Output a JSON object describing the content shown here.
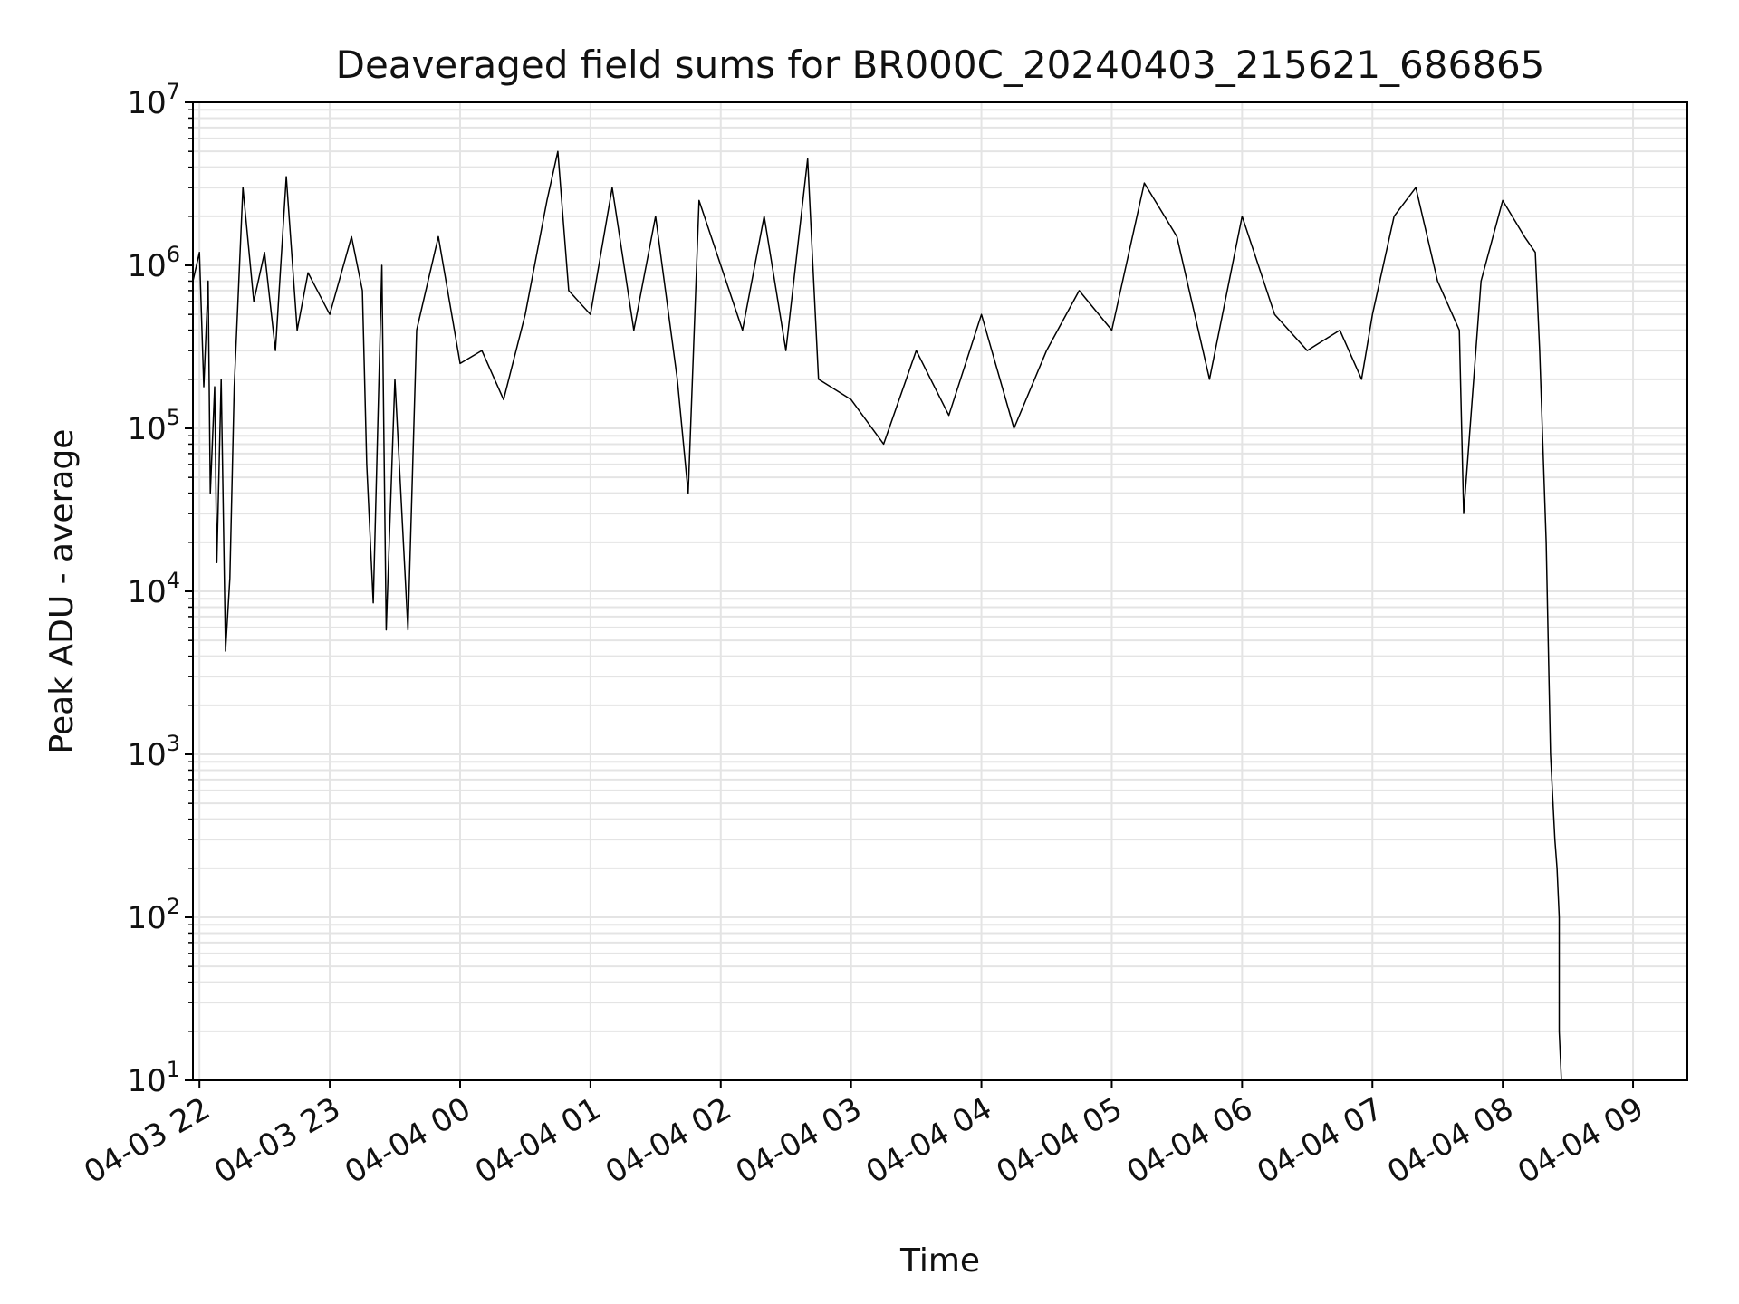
{
  "chart_data": {
    "type": "line",
    "title": "Deaveraged field sums for BR000C_20240403_215621_686865",
    "xlabel": "Time",
    "ylabel": "Peak ADU - average",
    "yscale": "log",
    "ylim": [
      10,
      10000000
    ],
    "xlim": [
      "2024-04-03 21:57",
      "2024-04-04 09:25"
    ],
    "grid": true,
    "legend": "none",
    "line_color": "#000000",
    "x_tick_labels": [
      "04-03 22",
      "04-03 23",
      "04-04 00",
      "04-04 01",
      "04-04 02",
      "04-04 03",
      "04-04 04",
      "04-04 05",
      "04-04 06",
      "04-04 07",
      "04-04 08",
      "04-04 09"
    ],
    "x_ticks": [
      "2024-04-03 22:00",
      "2024-04-03 23:00",
      "2024-04-04 00:00",
      "2024-04-04 01:00",
      "2024-04-04 02:00",
      "2024-04-04 03:00",
      "2024-04-04 04:00",
      "2024-04-04 05:00",
      "2024-04-04 06:00",
      "2024-04-04 07:00",
      "2024-04-04 08:00",
      "2024-04-04 09:00"
    ],
    "y_tick_values": [
      10,
      100,
      1000,
      10000,
      100000,
      1000000,
      10000000
    ],
    "y_tick_labels": [
      {
        "base": "10",
        "exp": "1"
      },
      {
        "base": "10",
        "exp": "2"
      },
      {
        "base": "10",
        "exp": "3"
      },
      {
        "base": "10",
        "exp": "4"
      },
      {
        "base": "10",
        "exp": "5"
      },
      {
        "base": "10",
        "exp": "6"
      },
      {
        "base": "10",
        "exp": "7"
      }
    ],
    "series": [
      {
        "x": [
          "2024-04-03 21:57",
          "2024-04-03 22:00",
          "2024-04-03 22:02",
          "2024-04-03 22:04",
          "2024-04-03 22:05",
          "2024-04-03 22:07",
          "2024-04-03 22:08",
          "2024-04-03 22:10",
          "2024-04-03 22:12",
          "2024-04-03 22:14",
          "2024-04-03 22:16",
          "2024-04-03 22:20",
          "2024-04-03 22:25",
          "2024-04-03 22:30",
          "2024-04-03 22:35",
          "2024-04-03 22:40",
          "2024-04-03 22:45",
          "2024-04-03 22:50",
          "2024-04-03 23:00",
          "2024-04-03 23:10",
          "2024-04-03 23:15",
          "2024-04-03 23:17",
          "2024-04-03 23:20",
          "2024-04-03 23:24",
          "2024-04-03 23:26",
          "2024-04-03 23:30",
          "2024-04-03 23:36",
          "2024-04-03 23:40",
          "2024-04-03 23:50",
          "2024-04-04 00:00",
          "2024-04-04 00:10",
          "2024-04-04 00:20",
          "2024-04-04 00:30",
          "2024-04-04 00:40",
          "2024-04-04 00:45",
          "2024-04-04 00:50",
          "2024-04-04 01:00",
          "2024-04-04 01:10",
          "2024-04-04 01:20",
          "2024-04-04 01:30",
          "2024-04-04 01:40",
          "2024-04-04 01:45",
          "2024-04-04 01:50",
          "2024-04-04 02:00",
          "2024-04-04 02:10",
          "2024-04-04 02:20",
          "2024-04-04 02:30",
          "2024-04-04 02:40",
          "2024-04-04 02:45",
          "2024-04-04 03:00",
          "2024-04-04 03:15",
          "2024-04-04 03:30",
          "2024-04-04 03:45",
          "2024-04-04 04:00",
          "2024-04-04 04:15",
          "2024-04-04 04:30",
          "2024-04-04 04:45",
          "2024-04-04 05:00",
          "2024-04-04 05:15",
          "2024-04-04 05:30",
          "2024-04-04 05:45",
          "2024-04-04 06:00",
          "2024-04-04 06:15",
          "2024-04-04 06:30",
          "2024-04-04 06:45",
          "2024-04-04 06:55",
          "2024-04-04 07:00",
          "2024-04-04 07:10",
          "2024-04-04 07:20",
          "2024-04-04 07:30",
          "2024-04-04 07:40",
          "2024-04-04 07:42",
          "2024-04-04 07:50",
          "2024-04-04 08:00",
          "2024-04-04 08:10",
          "2024-04-04 08:15",
          "2024-04-04 08:17",
          "2024-04-04 08:20",
          "2024-04-04 08:22",
          "2024-04-04 08:24",
          "2024-04-04 08:25",
          "2024-04-04 08:26",
          "2024-04-04 08:26",
          "2024-04-04 08:27"
        ],
        "y": [
          800000,
          1200000,
          180000,
          800000,
          40000,
          180000,
          15000,
          200000,
          4300,
          12000,
          180000,
          3000000,
          600000,
          1200000,
          300000,
          3500000,
          400000,
          900000,
          500000,
          1500000,
          700000,
          60000,
          8500,
          1000000,
          5800,
          200000,
          5800,
          400000,
          1500000,
          250000,
          300000,
          150000,
          500000,
          2500000,
          5000000,
          700000,
          500000,
          3000000,
          400000,
          2000000,
          200000,
          40000,
          2500000,
          1000000,
          400000,
          2000000,
          300000,
          4500000,
          200000,
          150000,
          80000,
          300000,
          120000,
          500000,
          100000,
          300000,
          700000,
          400000,
          3200000,
          1500000,
          200000,
          2000000,
          500000,
          300000,
          400000,
          200000,
          500000,
          2000000,
          3000000,
          800000,
          400000,
          30000,
          800000,
          2500000,
          1500000,
          1200000,
          300000,
          20000,
          1000,
          300,
          200,
          100,
          20,
          10
        ]
      }
    ]
  }
}
